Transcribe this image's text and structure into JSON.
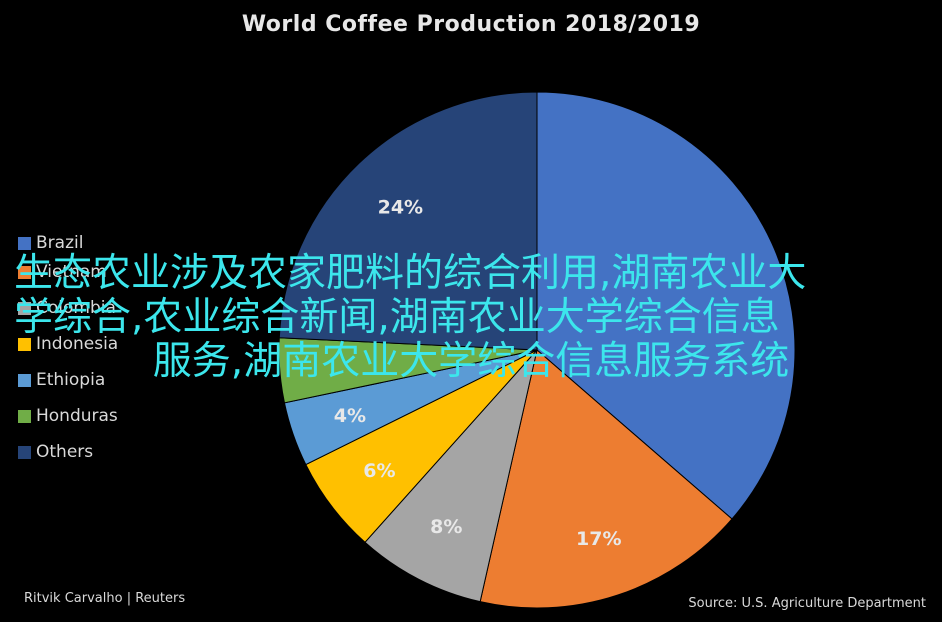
{
  "chart_data": {
    "type": "pie",
    "title": "World Coffee Production 2018/2019",
    "categories": [
      "Brazil",
      "Vietnam",
      "Colombia",
      "Indonesia",
      "Ethiopia",
      "Honduras",
      "Others"
    ],
    "values": [
      36,
      17,
      8,
      6,
      4,
      4,
      24
    ],
    "data_labels": [
      "",
      "17%",
      "8%",
      "6%",
      "4%",
      "",
      "24%"
    ],
    "slice_order": [
      0,
      1,
      2,
      3,
      4,
      5,
      6
    ],
    "legend_position": "left",
    "colors": [
      "#4472c4",
      "#ed7d31",
      "#a5a5a5",
      "#ffc000",
      "#5b9bd5",
      "#70ad47",
      "#264478"
    ]
  },
  "legend": {
    "items": [
      {
        "label": "Brazil",
        "color": "#4472c4"
      },
      {
        "label": "Vietnam",
        "color": "#ed7d31"
      },
      {
        "label": "Colombia",
        "color": "#a5a5a5"
      },
      {
        "label": "Indonesia",
        "color": "#ffc000"
      },
      {
        "label": "Ethiopia",
        "color": "#5b9bd5"
      },
      {
        "label": "Honduras",
        "color": "#70ad47"
      },
      {
        "label": "Others",
        "color": "#264478"
      }
    ]
  },
  "overlay": {
    "line1": "生态农业涉及农家肥料的综合利用,湖南农业大",
    "line2": "学综合,农业综合新闻,湖南农业大学综合信息",
    "line3": "服务,湖南农业大学综合信息服务系统",
    "color": "#3ce6ec"
  },
  "credits": {
    "author": "Ritvik Carvalho | Reuters",
    "source": "Source: U.S. Agriculture Department"
  }
}
